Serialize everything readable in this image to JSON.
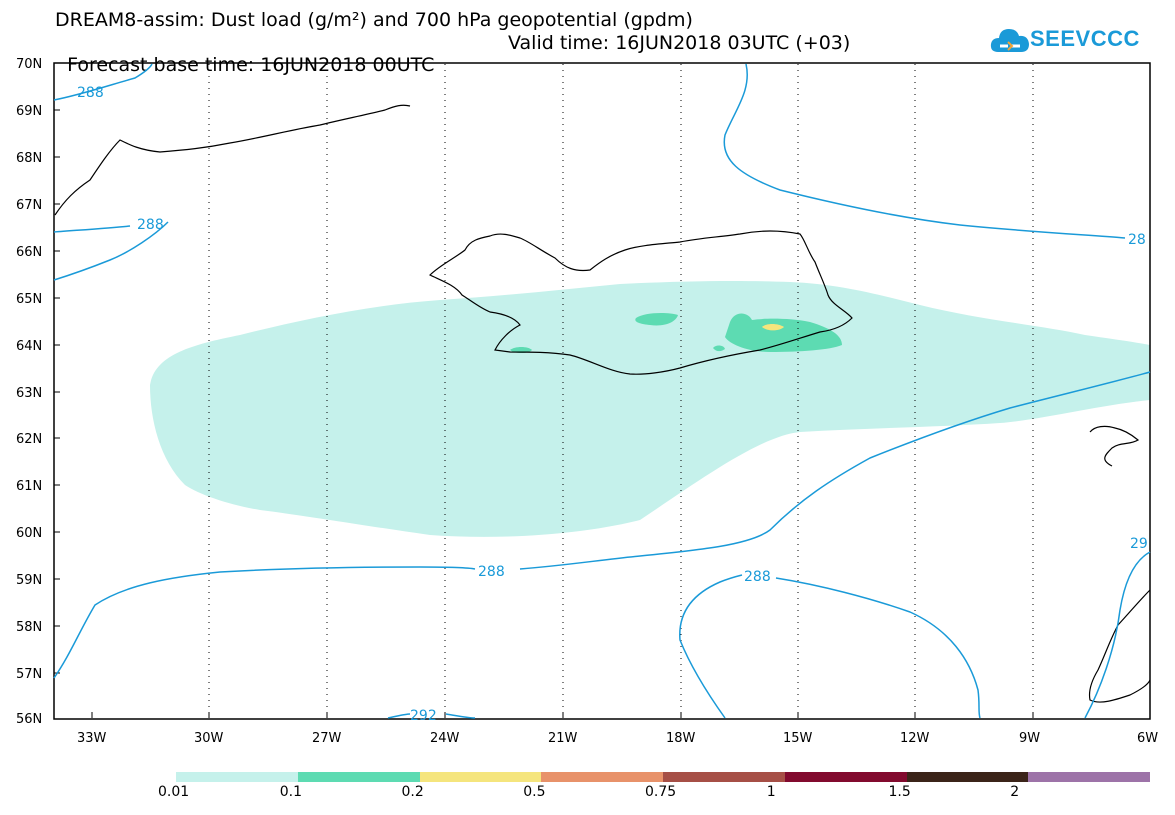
{
  "header": {
    "title": "DREAM8-assim: Dust load (g/m²) and 700 hPa geopotential (gpdm)",
    "forecast_base": "Forecast base time: 16JUN2018 00UTC",
    "valid_time": "Valid time: 16JUN2018 03UTC (+03)"
  },
  "logo": {
    "text": "SEEVCCC",
    "icon": "cloud-icon",
    "color": "#1a9ad8"
  },
  "map": {
    "lat_labels": [
      "70N",
      "69N",
      "68N",
      "67N",
      "66N",
      "65N",
      "64N",
      "63N",
      "62N",
      "61N",
      "60N",
      "59N",
      "58N",
      "57N",
      "56N"
    ],
    "lon_labels": [
      "33W",
      "30W",
      "27W",
      "24W",
      "21W",
      "18W",
      "15W",
      "12W",
      "9W",
      "6W"
    ],
    "contour_labels": [
      "288",
      "288",
      "28",
      "288",
      "288",
      "292",
      "29"
    ],
    "contour_color": "#1a9ad8"
  },
  "legend": {
    "colors": [
      "#c5f1eb",
      "#5ddbb2",
      "#f5e57d",
      "#e8926a",
      "#a64f46",
      "#820a2e",
      "#3b2419",
      "#9d73a8"
    ],
    "labels": [
      "0.01",
      "0.1",
      "0.2",
      "0.5",
      "0.75",
      "1",
      "1.5",
      "2"
    ]
  }
}
